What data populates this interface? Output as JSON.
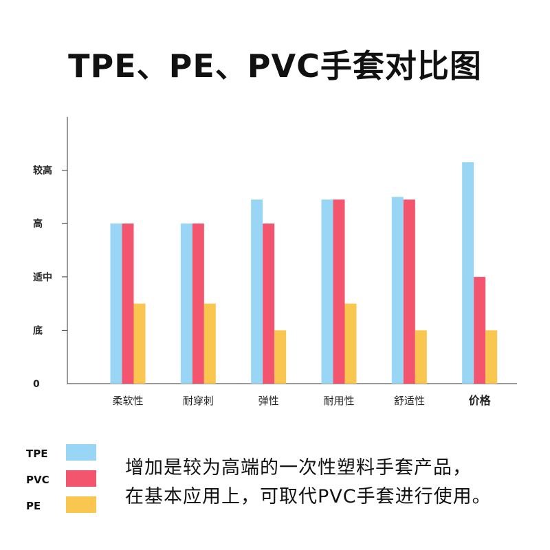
{
  "title": "TPE、PE、PVC手套对比图",
  "chart_data": {
    "type": "bar",
    "categories": [
      "柔软性",
      "耐穿刺",
      "弹性",
      "耐用性",
      "舒适性",
      "价格"
    ],
    "bold_categories": [
      "价格"
    ],
    "y_ticks": [
      {
        "value": 0,
        "label": "0"
      },
      {
        "value": 1,
        "label": "底"
      },
      {
        "value": 2,
        "label": "适中"
      },
      {
        "value": 3,
        "label": "高"
      },
      {
        "value": 4,
        "label": "较高"
      }
    ],
    "ylim": [
      0,
      5
    ],
    "series": [
      {
        "name": "TPE",
        "color": "#99d6f5",
        "values": [
          3.0,
          3.0,
          3.45,
          3.45,
          3.5,
          4.15
        ]
      },
      {
        "name": "PVC",
        "color": "#f2556d",
        "values": [
          3.0,
          3.0,
          3.0,
          3.45,
          3.45,
          2.0
        ]
      },
      {
        "name": "PE",
        "color": "#f9c64f",
        "values": [
          1.5,
          1.5,
          1.0,
          1.5,
          1.0,
          1.0
        ]
      }
    ],
    "grid": false,
    "legend_position": "bottom-left"
  },
  "description": {
    "line1": "增加是较为高端的一次性塑料手套产品，",
    "line2": "在基本应用上，可取代PVC手套进行使用。"
  }
}
